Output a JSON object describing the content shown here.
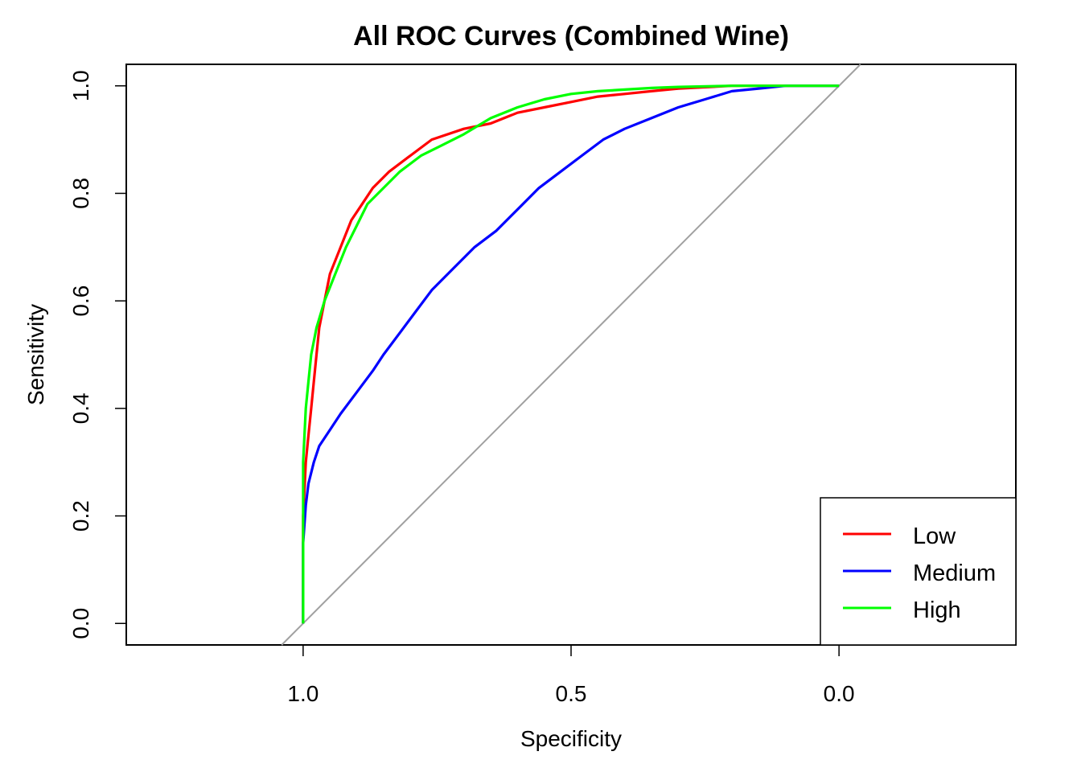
{
  "chart_data": {
    "type": "line",
    "title": "All ROC Curves (Combined Wine)",
    "xlabel": "Specificity",
    "ylabel": "Sensitivity",
    "xlim": [
      1.33,
      -0.33
    ],
    "ylim": [
      -0.04,
      1.04
    ],
    "x_reversed": true,
    "xticks": [
      1.0,
      0.5,
      0.0
    ],
    "xtick_labels": [
      "1.0",
      "0.5",
      "0.0"
    ],
    "yticks": [
      0.0,
      0.2,
      0.4,
      0.6,
      0.8,
      1.0
    ],
    "ytick_labels": [
      "0.0",
      "0.2",
      "0.4",
      "0.6",
      "0.8",
      "1.0"
    ],
    "reference_line": {
      "color": "#A0A0A0",
      "description": "diagonal"
    },
    "legend": {
      "placement": "bottom-right",
      "entries": [
        "Low",
        "Medium",
        "High"
      ]
    },
    "series": [
      {
        "name": "Low",
        "color": "#FF0000",
        "points": [
          [
            1.0,
            0.0
          ],
          [
            1.0,
            0.2
          ],
          [
            0.995,
            0.3
          ],
          [
            0.99,
            0.35
          ],
          [
            0.985,
            0.4
          ],
          [
            0.98,
            0.45
          ],
          [
            0.975,
            0.5
          ],
          [
            0.97,
            0.55
          ],
          [
            0.96,
            0.6
          ],
          [
            0.95,
            0.65
          ],
          [
            0.93,
            0.7
          ],
          [
            0.91,
            0.75
          ],
          [
            0.89,
            0.78
          ],
          [
            0.87,
            0.81
          ],
          [
            0.84,
            0.84
          ],
          [
            0.8,
            0.87
          ],
          [
            0.76,
            0.9
          ],
          [
            0.7,
            0.92
          ],
          [
            0.65,
            0.93
          ],
          [
            0.6,
            0.95
          ],
          [
            0.55,
            0.96
          ],
          [
            0.5,
            0.97
          ],
          [
            0.45,
            0.98
          ],
          [
            0.4,
            0.985
          ],
          [
            0.35,
            0.99
          ],
          [
            0.3,
            0.995
          ],
          [
            0.2,
            1.0
          ],
          [
            0.1,
            1.0
          ],
          [
            0.0,
            1.0
          ]
        ]
      },
      {
        "name": "Medium",
        "color": "#0000FF",
        "points": [
          [
            1.0,
            0.0
          ],
          [
            1.0,
            0.15
          ],
          [
            0.995,
            0.22
          ],
          [
            0.99,
            0.26
          ],
          [
            0.98,
            0.3
          ],
          [
            0.97,
            0.33
          ],
          [
            0.95,
            0.36
          ],
          [
            0.93,
            0.39
          ],
          [
            0.9,
            0.43
          ],
          [
            0.87,
            0.47
          ],
          [
            0.85,
            0.5
          ],
          [
            0.82,
            0.54
          ],
          [
            0.79,
            0.58
          ],
          [
            0.76,
            0.62
          ],
          [
            0.72,
            0.66
          ],
          [
            0.68,
            0.7
          ],
          [
            0.64,
            0.73
          ],
          [
            0.6,
            0.77
          ],
          [
            0.56,
            0.81
          ],
          [
            0.52,
            0.84
          ],
          [
            0.48,
            0.87
          ],
          [
            0.44,
            0.9
          ],
          [
            0.4,
            0.92
          ],
          [
            0.35,
            0.94
          ],
          [
            0.3,
            0.96
          ],
          [
            0.25,
            0.975
          ],
          [
            0.2,
            0.99
          ],
          [
            0.15,
            0.995
          ],
          [
            0.1,
            1.0
          ],
          [
            0.05,
            1.0
          ],
          [
            0.0,
            1.0
          ]
        ]
      },
      {
        "name": "High",
        "color": "#00FF00",
        "points": [
          [
            1.0,
            0.0
          ],
          [
            1.0,
            0.3
          ],
          [
            0.995,
            0.4
          ],
          [
            0.99,
            0.45
          ],
          [
            0.985,
            0.5
          ],
          [
            0.975,
            0.55
          ],
          [
            0.96,
            0.6
          ],
          [
            0.94,
            0.65
          ],
          [
            0.92,
            0.7
          ],
          [
            0.9,
            0.74
          ],
          [
            0.88,
            0.78
          ],
          [
            0.85,
            0.81
          ],
          [
            0.82,
            0.84
          ],
          [
            0.78,
            0.87
          ],
          [
            0.74,
            0.89
          ],
          [
            0.7,
            0.91
          ],
          [
            0.65,
            0.94
          ],
          [
            0.6,
            0.96
          ],
          [
            0.55,
            0.975
          ],
          [
            0.5,
            0.985
          ],
          [
            0.45,
            0.99
          ],
          [
            0.4,
            0.993
          ],
          [
            0.35,
            0.996
          ],
          [
            0.3,
            0.998
          ],
          [
            0.2,
            1.0
          ],
          [
            0.1,
            1.0
          ],
          [
            0.0,
            1.0
          ]
        ]
      }
    ]
  }
}
